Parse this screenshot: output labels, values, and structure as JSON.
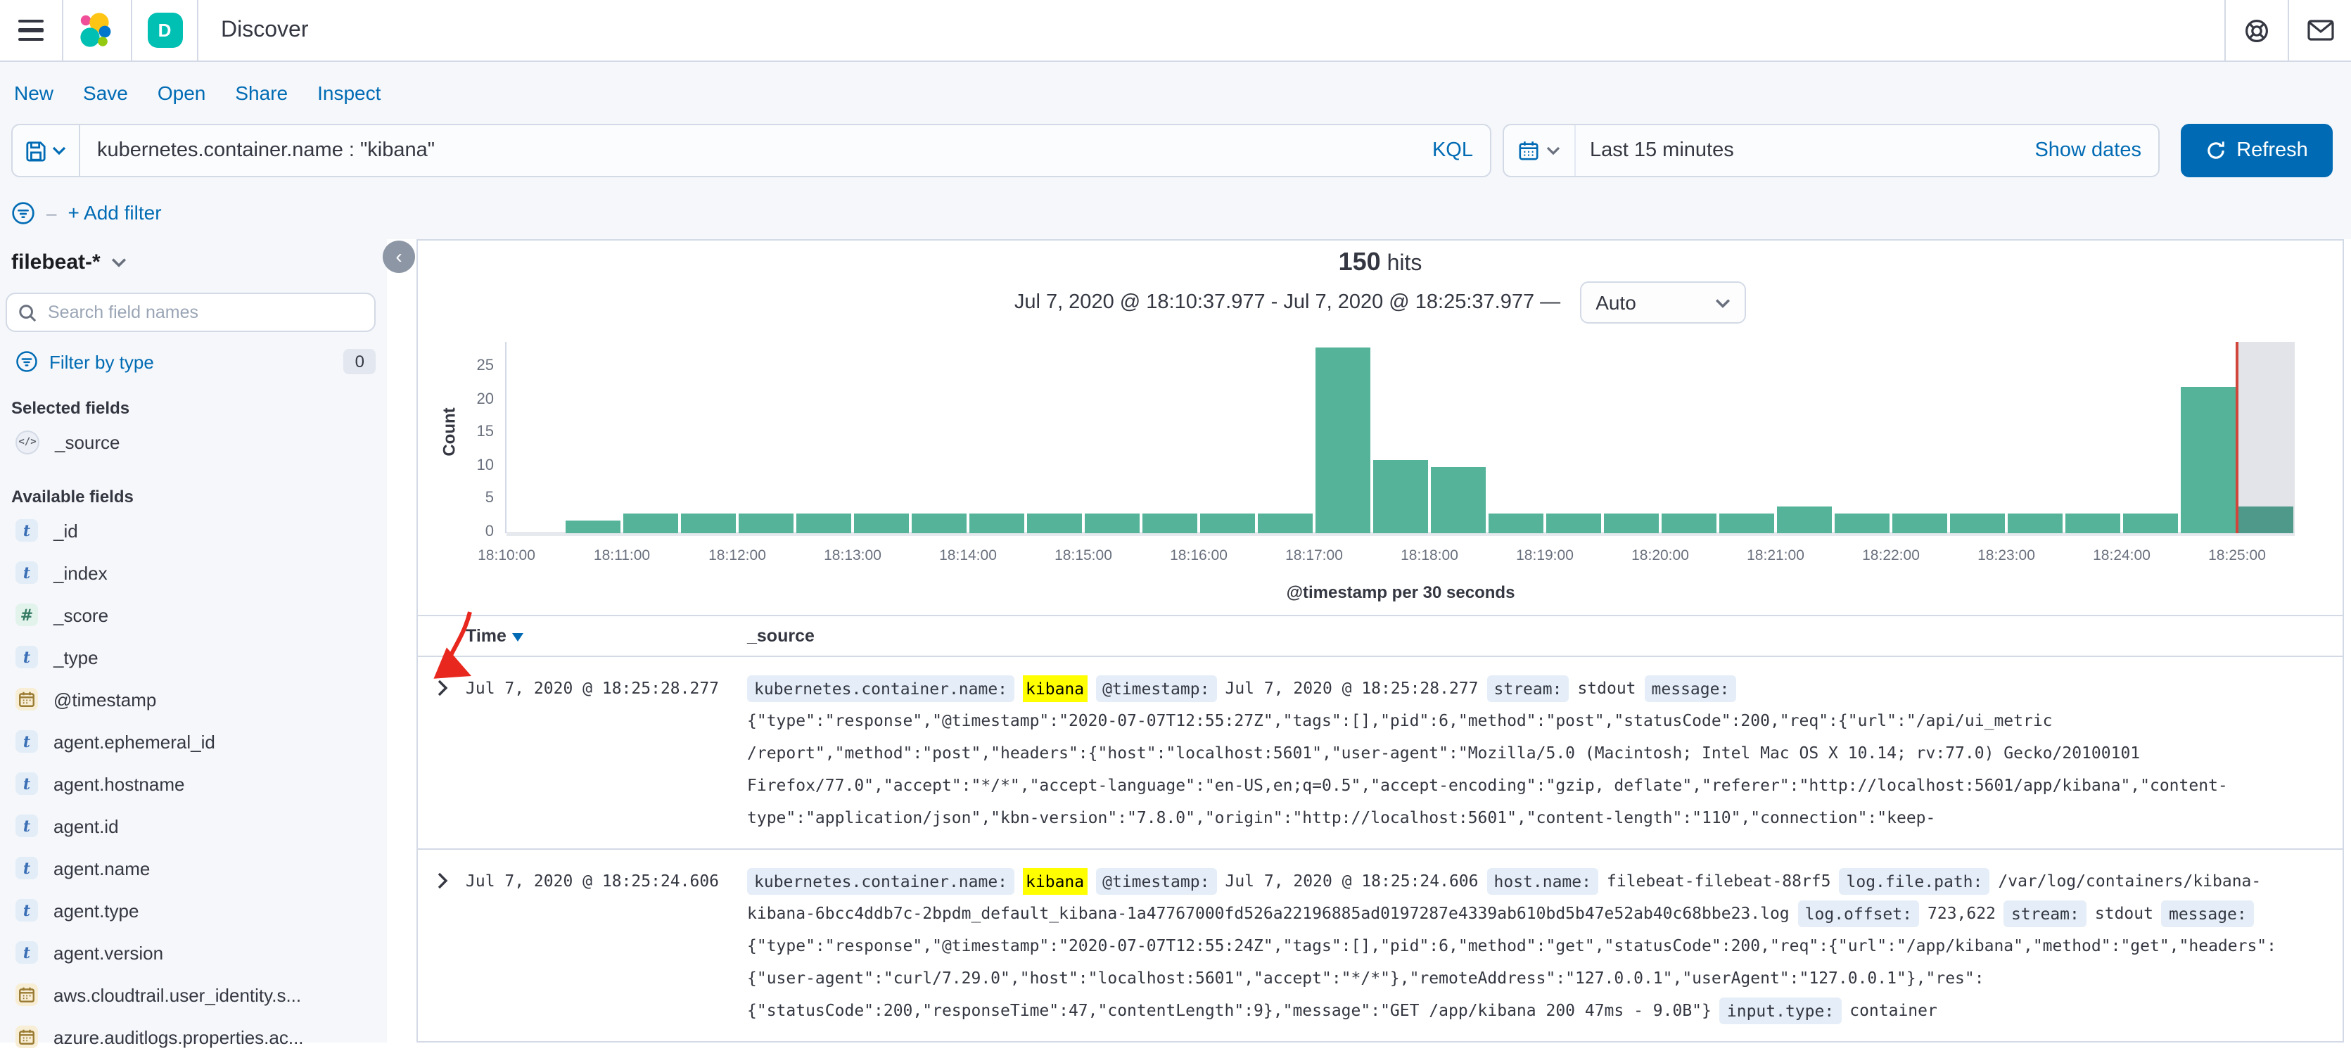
{
  "colors": {
    "accent_blue": "#006BB4",
    "bar_green": "#54B399",
    "current_bar_green": "#4E998A",
    "now_line_red": "#D0463B",
    "highlight_yellow": "#ffff00",
    "band_gray": "#f5f7fa",
    "border_gray": "#d3dae6"
  },
  "icons": {
    "menu-icon": "hamburger",
    "elastic-logo": "colored-blob-cluster",
    "help-icon": "life-ring",
    "newsfeed-icon": "envelope",
    "save-query-icon": "floppy-disk",
    "calendar-icon": "calendar",
    "refresh-icon": "circular-arrow",
    "search-icon": "magnifier",
    "filter-icon": "circled-filter-lines",
    "source-field-icon": "code-brackets"
  },
  "header": {
    "app_badge": "D",
    "title": "Discover"
  },
  "toolbar": {
    "items": [
      "New",
      "Save",
      "Open",
      "Share",
      "Inspect"
    ]
  },
  "query_bar": {
    "query": "kubernetes.container.name : \"kibana\"",
    "language": "KQL",
    "time_range": "Last 15 minutes",
    "show_dates_label": "Show dates",
    "refresh_label": "Refresh"
  },
  "filter_bar": {
    "dash": "–",
    "add_filter_label": "+ Add filter"
  },
  "sidebar": {
    "index_pattern": "filebeat-*",
    "search_placeholder": "Search field names",
    "filter_by_type_label": "Filter by type",
    "filter_count": "0",
    "selected_heading": "Selected fields",
    "selected_fields": [
      {
        "type": "source",
        "name": "_source"
      }
    ],
    "available_heading": "Available fields",
    "available_fields": [
      {
        "type": "t",
        "name": "_id"
      },
      {
        "type": "t",
        "name": "_index"
      },
      {
        "type": "num",
        "name": "_score"
      },
      {
        "type": "t",
        "name": "_type"
      },
      {
        "type": "date",
        "name": "@timestamp"
      },
      {
        "type": "t",
        "name": "agent.ephemeral_id"
      },
      {
        "type": "t",
        "name": "agent.hostname"
      },
      {
        "type": "t",
        "name": "agent.id"
      },
      {
        "type": "t",
        "name": "agent.name"
      },
      {
        "type": "t",
        "name": "agent.type"
      },
      {
        "type": "t",
        "name": "agent.version"
      },
      {
        "type": "date",
        "name": "aws.cloudtrail.user_identity.s..."
      },
      {
        "type": "date",
        "name": "azure.auditlogs.properties.ac..."
      }
    ]
  },
  "results": {
    "hits_count": "150",
    "hits_label": "hits",
    "range_text": "Jul 7, 2020 @ 18:10:37.977 - Jul 7, 2020 @ 18:25:37.977 —",
    "interval_value": "Auto"
  },
  "chart_data": {
    "type": "bar",
    "title": "150 hits",
    "xlabel": "@timestamp per 30 seconds",
    "ylabel": "Count",
    "ylim": [
      0,
      29
    ],
    "yticks": [
      0,
      5,
      10,
      15,
      20,
      25
    ],
    "xticks": [
      "18:10:00",
      "18:11:00",
      "18:12:00",
      "18:13:00",
      "18:14:00",
      "18:15:00",
      "18:16:00",
      "18:17:00",
      "18:18:00",
      "18:19:00",
      "18:20:00",
      "18:21:00",
      "18:22:00",
      "18:23:00",
      "18:24:00",
      "18:25:00"
    ],
    "categories": [
      "18:10:30",
      "18:11:00",
      "18:11:30",
      "18:12:00",
      "18:12:30",
      "18:13:00",
      "18:13:30",
      "18:14:00",
      "18:14:30",
      "18:15:00",
      "18:15:30",
      "18:16:00",
      "18:16:30",
      "18:17:00",
      "18:17:30",
      "18:18:00",
      "18:18:30",
      "18:19:00",
      "18:19:30",
      "18:20:00",
      "18:20:30",
      "18:21:00",
      "18:21:30",
      "18:22:00",
      "18:22:30",
      "18:23:00",
      "18:23:30",
      "18:24:00",
      "18:24:30",
      "18:25:00"
    ],
    "values": [
      2,
      3,
      3,
      3,
      3,
      3,
      3,
      3,
      3,
      3,
      3,
      3,
      3,
      28,
      11,
      10,
      3,
      3,
      3,
      3,
      3,
      4,
      3,
      3,
      3,
      3,
      3,
      3,
      22,
      4
    ],
    "lead_empty_slots": 1,
    "current_bucket_shaded": true,
    "now_line_at_tick": "18:25:00",
    "legend": "none",
    "grid": "off"
  },
  "table": {
    "columns": [
      "Time",
      "_source"
    ],
    "sorted_by": "Time",
    "rows": [
      {
        "time": "Jul 7, 2020 @ 18:25:28.277",
        "lines": [
          [
            {
              "k": "field",
              "v": "kubernetes.container.name:"
            },
            {
              "k": "mark",
              "v": "kibana"
            },
            {
              "k": "field",
              "v": "@timestamp:"
            },
            {
              "k": "text",
              "v": "Jul 7, 2020 @ 18:25:28.277"
            },
            {
              "k": "field",
              "v": "stream:"
            },
            {
              "k": "text",
              "v": "stdout"
            },
            {
              "k": "field",
              "v": "message:"
            }
          ],
          [
            {
              "k": "text",
              "v": "{\"type\":\"response\",\"@timestamp\":\"2020-07-07T12:55:27Z\",\"tags\":[],\"pid\":6,\"method\":\"post\",\"statusCode\":200,\"req\":{\"url\":\"/api/ui_metric"
            }
          ],
          [
            {
              "k": "text",
              "v": "/report\",\"method\":\"post\",\"headers\":{\"host\":\"localhost:5601\",\"user-agent\":\"Mozilla/5.0 (Macintosh; Intel Mac OS X 10.14; rv:77.0) Gecko/20100101"
            }
          ],
          [
            {
              "k": "text",
              "v": "Firefox/77.0\",\"accept\":\"*/*\",\"accept-language\":\"en-US,en;q=0.5\",\"accept-encoding\":\"gzip, deflate\",\"referer\":\"http://localhost:5601/app/kibana\",\"content-"
            }
          ],
          [
            {
              "k": "text",
              "v": "type\":\"application/json\",\"kbn-version\":\"7.8.0\",\"origin\":\"http://localhost:5601\",\"content-length\":\"110\",\"connection\":\"keep-"
            }
          ]
        ]
      },
      {
        "time": "Jul 7, 2020 @ 18:25:24.606",
        "lines": [
          [
            {
              "k": "field",
              "v": "kubernetes.container.name:"
            },
            {
              "k": "mark",
              "v": "kibana"
            },
            {
              "k": "field",
              "v": "@timestamp:"
            },
            {
              "k": "text",
              "v": "Jul 7, 2020 @ 18:25:24.606"
            },
            {
              "k": "field",
              "v": "host.name:"
            },
            {
              "k": "text",
              "v": "filebeat-filebeat-88rf5"
            },
            {
              "k": "field",
              "v": "log.file.path:"
            },
            {
              "k": "text",
              "v": "/var/log/containers/kibana-"
            }
          ],
          [
            {
              "k": "text",
              "v": "kibana-6bcc4ddb7c-2bpdm_default_kibana-1a47767000fd526a22196885ad0197287e4339ab610bd5b47e52ab40c68bbe23.log"
            },
            {
              "k": "field",
              "v": "log.offset:"
            },
            {
              "k": "text",
              "v": "723,622"
            },
            {
              "k": "field",
              "v": "stream:"
            },
            {
              "k": "text",
              "v": "stdout"
            },
            {
              "k": "field",
              "v": "message:"
            }
          ],
          [
            {
              "k": "text",
              "v": "{\"type\":\"response\",\"@timestamp\":\"2020-07-07T12:55:24Z\",\"tags\":[],\"pid\":6,\"method\":\"get\",\"statusCode\":200,\"req\":{\"url\":\"/app/kibana\",\"method\":\"get\",\"headers\":"
            }
          ],
          [
            {
              "k": "text",
              "v": "{\"user-agent\":\"curl/7.29.0\",\"host\":\"localhost:5601\",\"accept\":\"*/*\"},\"remoteAddress\":\"127.0.0.1\",\"userAgent\":\"127.0.0.1\"},\"res\":"
            }
          ],
          [
            {
              "k": "text",
              "v": "{\"statusCode\":200,\"responseTime\":47,\"contentLength\":9},\"message\":\"GET /app/kibana 200 47ms - 9.0B\"}"
            },
            {
              "k": "field",
              "v": "input.type:"
            },
            {
              "k": "text",
              "v": "container"
            }
          ]
        ]
      }
    ]
  }
}
